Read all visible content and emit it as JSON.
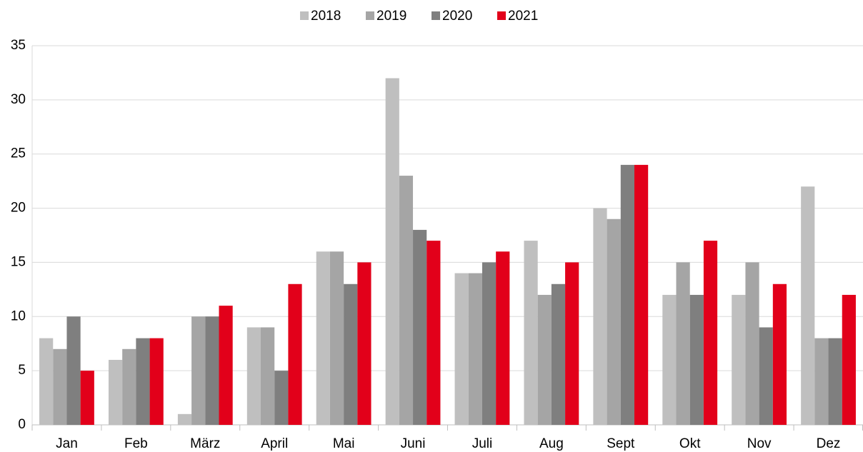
{
  "chart_data": {
    "type": "bar",
    "categories": [
      "Jan",
      "Feb",
      "März",
      "April",
      "Mai",
      "Juni",
      "Juli",
      "Aug",
      "Sept",
      "Okt",
      "Nov",
      "Dez"
    ],
    "series": [
      {
        "name": "2018",
        "color": "#bfbfbf",
        "values": [
          8,
          6,
          1,
          9,
          16,
          32,
          14,
          17,
          20,
          12,
          12,
          22
        ]
      },
      {
        "name": "2019",
        "color": "#a5a5a5",
        "values": [
          7,
          7,
          10,
          9,
          16,
          23,
          14,
          12,
          19,
          15,
          15,
          8
        ]
      },
      {
        "name": "2020",
        "color": "#7f7f7f",
        "values": [
          10,
          8,
          10,
          5,
          13,
          18,
          15,
          13,
          24,
          12,
          9,
          8
        ]
      },
      {
        "name": "2021",
        "color": "#e2001a",
        "values": [
          5,
          8,
          11,
          13,
          15,
          17,
          16,
          15,
          24,
          17,
          13,
          12
        ]
      }
    ],
    "ylim": [
      0,
      35
    ],
    "yticks": [
      0,
      5,
      10,
      15,
      20,
      25,
      30,
      35
    ],
    "grid": true,
    "legend": "top"
  }
}
